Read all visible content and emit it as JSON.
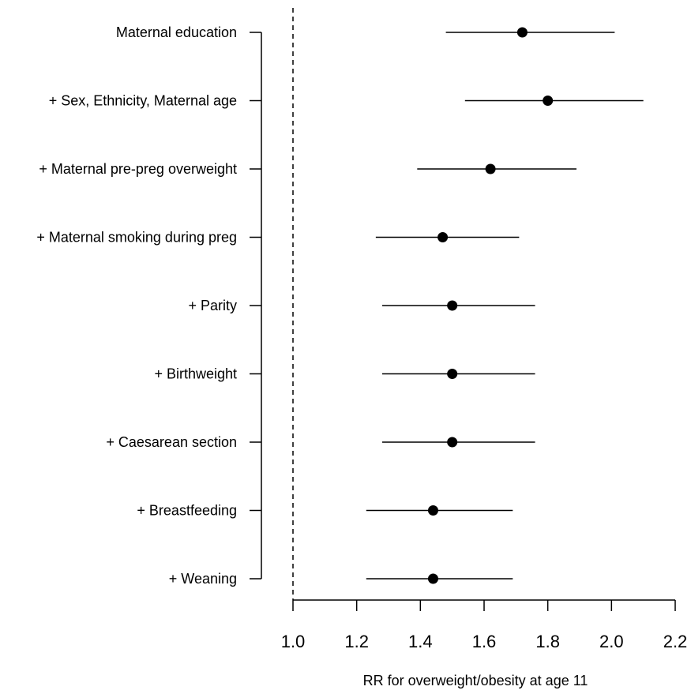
{
  "chart_data": {
    "type": "scatter",
    "subtype": "forest-plot",
    "title": "",
    "xlabel": "RR for overweight/obesity at age 11",
    "ylabel": "",
    "xlim": [
      1.0,
      2.2
    ],
    "x_ticks": [
      1.0,
      1.2,
      1.4,
      1.6,
      1.8,
      2.0,
      2.2
    ],
    "x_tick_labels": [
      "1.0",
      "1.2",
      "1.4",
      "1.6",
      "1.8",
      "2.0",
      "2.2"
    ],
    "reference_line": 1.0,
    "grid": false,
    "legend": "none",
    "rows": [
      {
        "label": "Maternal education",
        "estimate": 1.72,
        "lower": 1.48,
        "upper": 2.01
      },
      {
        "label": "+ Sex, Ethnicity, Maternal age",
        "estimate": 1.8,
        "lower": 1.54,
        "upper": 2.1
      },
      {
        "label": "+ Maternal pre-preg overweight",
        "estimate": 1.62,
        "lower": 1.39,
        "upper": 1.89
      },
      {
        "label": "+ Maternal smoking during preg",
        "estimate": 1.47,
        "lower": 1.26,
        "upper": 1.71
      },
      {
        "label": "+ Parity",
        "estimate": 1.5,
        "lower": 1.28,
        "upper": 1.76
      },
      {
        "label": "+ Birthweight",
        "estimate": 1.5,
        "lower": 1.28,
        "upper": 1.76
      },
      {
        "label": "+ Caesarean section",
        "estimate": 1.5,
        "lower": 1.28,
        "upper": 1.76
      },
      {
        "label": "+ Breastfeeding",
        "estimate": 1.44,
        "lower": 1.23,
        "upper": 1.69
      },
      {
        "label": "+ Weaning",
        "estimate": 1.44,
        "lower": 1.23,
        "upper": 1.69
      }
    ],
    "colors": {
      "marks": "#000000",
      "background": "#ffffff"
    }
  }
}
